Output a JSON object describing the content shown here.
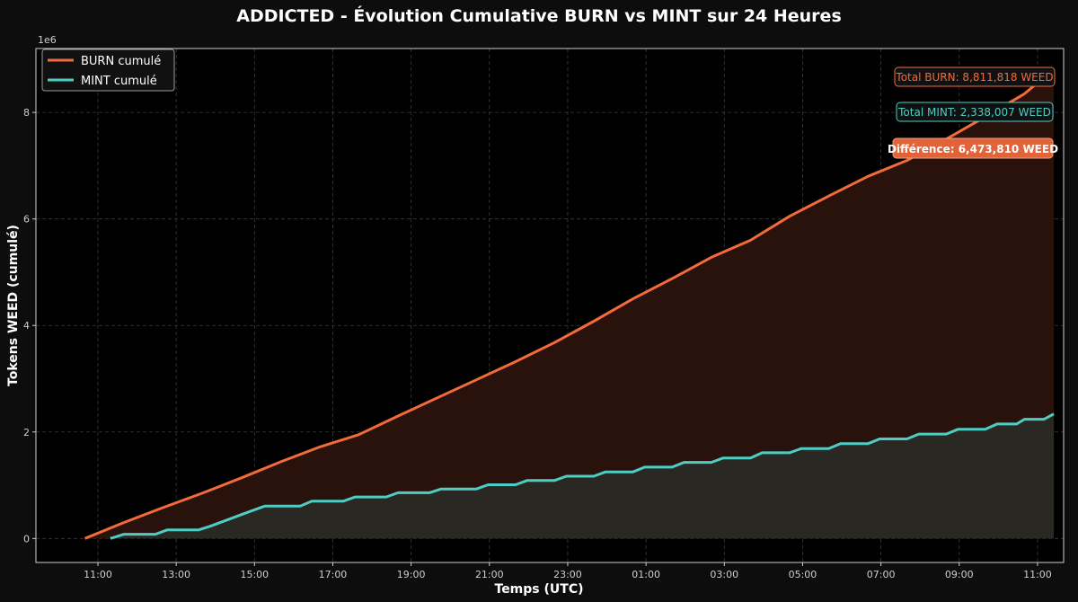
{
  "chart_data": {
    "type": "area",
    "title": "ADDICTED - Évolution Cumulative BURN vs MINT sur 24 Heures",
    "xlabel": "Temps (UTC)",
    "ylabel": "Tokens WEED (cumulé)",
    "y_exponent_label": "1e6",
    "ylim": [
      -450000,
      9200000
    ],
    "xlim_hours": [
      -1.25,
      25.0
    ],
    "grid": true,
    "legend_position": "top-left",
    "x_ticks": [
      {
        "h": 0.333,
        "label": "11:00"
      },
      {
        "h": 2.333,
        "label": "13:00"
      },
      {
        "h": 4.333,
        "label": "15:00"
      },
      {
        "h": 6.333,
        "label": "17:00"
      },
      {
        "h": 8.333,
        "label": "19:00"
      },
      {
        "h": 10.333,
        "label": "21:00"
      },
      {
        "h": 12.333,
        "label": "23:00"
      },
      {
        "h": 14.333,
        "label": "01:00"
      },
      {
        "h": 16.333,
        "label": "03:00"
      },
      {
        "h": 18.333,
        "label": "05:00"
      },
      {
        "h": 20.333,
        "label": "07:00"
      },
      {
        "h": 22.333,
        "label": "09:00"
      },
      {
        "h": 24.333,
        "label": "11:00"
      }
    ],
    "y_ticks": [
      {
        "v": 0,
        "label": "0"
      },
      {
        "v": 2000000,
        "label": "2"
      },
      {
        "v": 4000000,
        "label": "4"
      },
      {
        "v": 6000000,
        "label": "6"
      },
      {
        "v": 8000000,
        "label": "8"
      }
    ],
    "series": [
      {
        "name": "BURN cumulé",
        "color": "#f26b3a",
        "fill": "#2a130c",
        "points": [
          [
            0.0,
            0
          ],
          [
            1.0,
            300000
          ],
          [
            2.0,
            580000
          ],
          [
            3.0,
            850000
          ],
          [
            4.0,
            1140000
          ],
          [
            5.0,
            1440000
          ],
          [
            6.0,
            1720000
          ],
          [
            7.0,
            1950000
          ],
          [
            8.0,
            2300000
          ],
          [
            9.0,
            2640000
          ],
          [
            10.0,
            2980000
          ],
          [
            11.0,
            3320000
          ],
          [
            12.0,
            3680000
          ],
          [
            13.0,
            4080000
          ],
          [
            14.0,
            4500000
          ],
          [
            15.0,
            4880000
          ],
          [
            16.0,
            5280000
          ],
          [
            17.0,
            5600000
          ],
          [
            18.0,
            6050000
          ],
          [
            19.0,
            6430000
          ],
          [
            20.0,
            6800000
          ],
          [
            21.0,
            7100000
          ],
          [
            22.0,
            7500000
          ],
          [
            23.0,
            7920000
          ],
          [
            24.0,
            8350000
          ],
          [
            24.75,
            8811818
          ]
        ]
      },
      {
        "name": "MINT cumulé",
        "color": "#4ecdc4",
        "fill": "#2a2a24",
        "points": [
          [
            0.65,
            0
          ],
          [
            1.0,
            80000
          ],
          [
            1.8,
            80000
          ],
          [
            2.1,
            160000
          ],
          [
            2.9,
            160000
          ],
          [
            3.2,
            230000
          ],
          [
            4.0,
            450000
          ],
          [
            4.6,
            610000
          ],
          [
            5.5,
            610000
          ],
          [
            5.8,
            700000
          ],
          [
            6.6,
            700000
          ],
          [
            6.9,
            780000
          ],
          [
            7.7,
            780000
          ],
          [
            8.0,
            860000
          ],
          [
            8.8,
            860000
          ],
          [
            9.1,
            930000
          ],
          [
            10.0,
            930000
          ],
          [
            10.3,
            1010000
          ],
          [
            11.0,
            1010000
          ],
          [
            11.3,
            1090000
          ],
          [
            12.0,
            1090000
          ],
          [
            12.3,
            1170000
          ],
          [
            13.0,
            1170000
          ],
          [
            13.3,
            1250000
          ],
          [
            14.0,
            1250000
          ],
          [
            14.3,
            1340000
          ],
          [
            15.0,
            1340000
          ],
          [
            15.3,
            1430000
          ],
          [
            16.0,
            1430000
          ],
          [
            16.3,
            1510000
          ],
          [
            17.0,
            1510000
          ],
          [
            17.3,
            1610000
          ],
          [
            18.0,
            1610000
          ],
          [
            18.3,
            1690000
          ],
          [
            19.0,
            1690000
          ],
          [
            19.3,
            1780000
          ],
          [
            20.0,
            1780000
          ],
          [
            20.3,
            1870000
          ],
          [
            21.0,
            1870000
          ],
          [
            21.3,
            1960000
          ],
          [
            22.0,
            1960000
          ],
          [
            22.3,
            2050000
          ],
          [
            23.0,
            2050000
          ],
          [
            23.3,
            2150000
          ],
          [
            23.8,
            2150000
          ],
          [
            24.0,
            2240000
          ],
          [
            24.5,
            2240000
          ],
          [
            24.75,
            2338007
          ]
        ]
      }
    ],
    "annotations": [
      {
        "text": "Total BURN: 8,811,818 WEED",
        "color": "#f26b3a",
        "style": "outline"
      },
      {
        "text": "Total MINT: 2,338,007 WEED",
        "color": "#4ecdc4",
        "style": "outline"
      },
      {
        "text": "Différence: 6,473,810 WEED",
        "color": "#e0633a",
        "style": "filled"
      }
    ]
  }
}
